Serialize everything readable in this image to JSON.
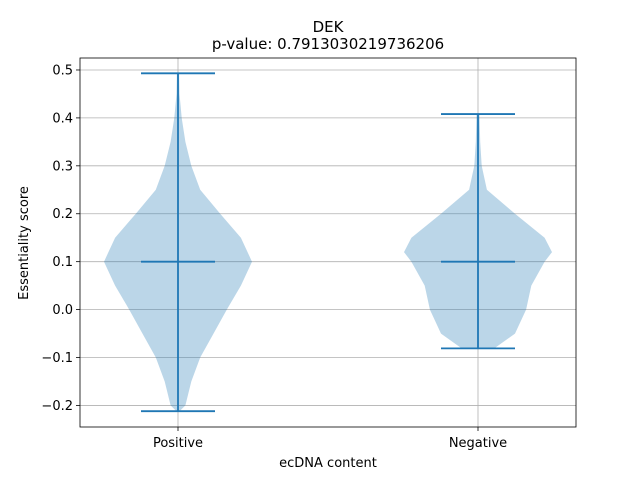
{
  "chart_data": {
    "type": "violin",
    "title": "DEK",
    "subtitle": "p-value: 0.7913030219736206",
    "xlabel": "ecDNA content",
    "ylabel": "Essentiality score",
    "categories": [
      "Positive",
      "Negative"
    ],
    "ylim": [
      -0.245,
      0.525
    ],
    "yticks": [
      -0.2,
      -0.1,
      0.0,
      0.1,
      0.2,
      0.3,
      0.4,
      0.5
    ],
    "ytick_labels": [
      "−0.2",
      "−0.1",
      "0.0",
      "0.1",
      "0.2",
      "0.3",
      "0.4",
      "0.5"
    ],
    "grid": true,
    "series": [
      {
        "min": -0.212,
        "median": 0.1,
        "max": 0.493,
        "density": [
          [
            -0.212,
            0.02
          ],
          [
            -0.2,
            0.1
          ],
          [
            -0.15,
            0.18
          ],
          [
            -0.1,
            0.3
          ],
          [
            -0.05,
            0.48
          ],
          [
            0.0,
            0.66
          ],
          [
            0.05,
            0.85
          ],
          [
            0.1,
            1.0
          ],
          [
            0.15,
            0.85
          ],
          [
            0.2,
            0.57
          ],
          [
            0.25,
            0.3
          ],
          [
            0.3,
            0.18
          ],
          [
            0.35,
            0.1
          ],
          [
            0.4,
            0.05
          ],
          [
            0.45,
            0.02
          ],
          [
            0.493,
            0.015
          ]
        ]
      },
      {
        "min": -0.081,
        "median": 0.1,
        "max": 0.408,
        "density": [
          [
            -0.081,
            0.22
          ],
          [
            -0.05,
            0.5
          ],
          [
            0.0,
            0.65
          ],
          [
            0.05,
            0.72
          ],
          [
            0.1,
            0.9
          ],
          [
            0.12,
            1.0
          ],
          [
            0.15,
            0.9
          ],
          [
            0.2,
            0.5
          ],
          [
            0.25,
            0.12
          ],
          [
            0.3,
            0.05
          ],
          [
            0.35,
            0.03
          ],
          [
            0.408,
            0.02
          ]
        ]
      }
    ],
    "color": "#1f77b4"
  }
}
